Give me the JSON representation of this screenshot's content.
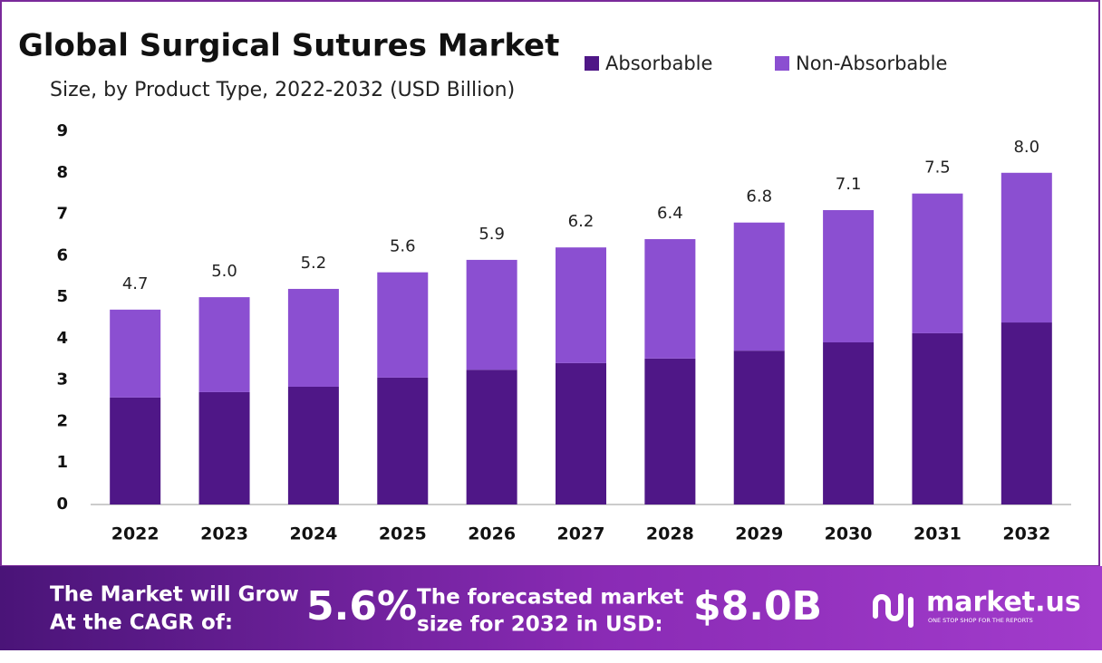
{
  "chart_data": {
    "type": "stacked_bar",
    "title": "Global Surgical Sutures Market",
    "subtitle": "Size, by Product Type, 2022-2032 (USD Billion)",
    "categories": [
      "2022",
      "2023",
      "2024",
      "2025",
      "2026",
      "2027",
      "2028",
      "2029",
      "2030",
      "2031",
      "2032"
    ],
    "series": [
      {
        "name": "Absorbable",
        "color": "#4f1787",
        "values": [
          2.58,
          2.71,
          2.84,
          3.06,
          3.25,
          3.41,
          3.52,
          3.71,
          3.91,
          4.13,
          4.39
        ]
      },
      {
        "name": "Non-Absorbable",
        "color": "#8b4fd1",
        "values": [
          2.12,
          2.29,
          2.36,
          2.54,
          2.65,
          2.79,
          2.88,
          3.09,
          3.19,
          3.37,
          3.61
        ]
      }
    ],
    "total_labels": [
      "4.7",
      "5.0",
      "5.2",
      "5.6",
      "5.9",
      "6.2",
      "6.4",
      "6.8",
      "7.1",
      "7.5",
      "8.0"
    ],
    "ylim": [
      0,
      9
    ],
    "yticks": [
      0,
      1,
      2,
      3,
      4,
      5,
      6,
      7,
      8,
      9
    ],
    "grid": false
  },
  "footer": {
    "cagr_line1": "The Market will Grow",
    "cagr_line2": "At the CAGR of:",
    "cagr_value": "5.6%",
    "forecast_line1": "The forecasted market",
    "forecast_line2": "size for 2032 in USD:",
    "forecast_value": "$8.0B",
    "brand": "market.us",
    "tagline": "ONE STOP SHOP FOR THE REPORTS"
  }
}
